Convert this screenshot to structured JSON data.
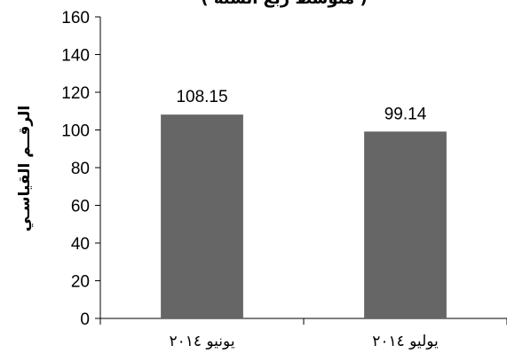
{
  "chart_data": {
    "type": "bar",
    "title": "( متوسط ربع السنة )",
    "xlabel": "",
    "ylabel": "الرقــم القياسـي",
    "categories": [
      "يونيو ٢٠١٤",
      "يوليو ٢٠١٤"
    ],
    "values": [
      108.15,
      99.14
    ],
    "data_labels": [
      "108.15",
      "99.14"
    ],
    "ylim": [
      0,
      160
    ],
    "yticks": [
      0,
      20,
      40,
      60,
      80,
      100,
      120,
      140,
      160
    ],
    "grid": false,
    "legend": "none",
    "bar_color": "#666666"
  }
}
